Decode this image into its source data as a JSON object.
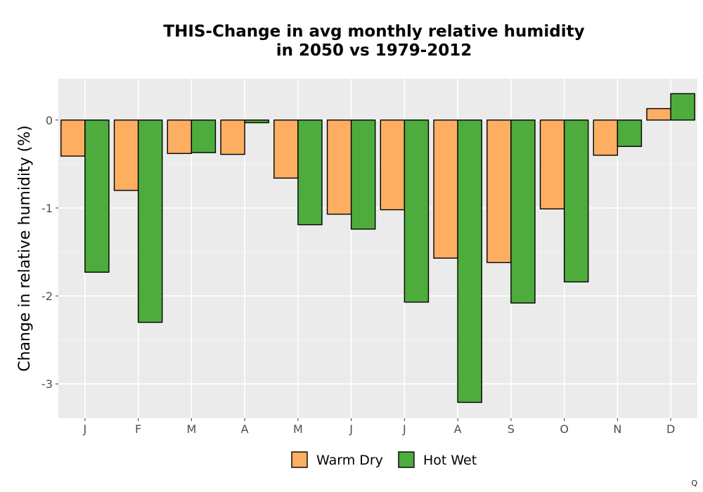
{
  "chart_data": {
    "type": "bar",
    "title_lines": [
      "THIS-Change in avg monthly relative humidity",
      "in 2050 vs 1979-2012"
    ],
    "xlabel": "",
    "ylabel": "Change in relative humidity (%)",
    "categories": [
      "J",
      "F",
      "M",
      "A",
      "M",
      "J",
      "J",
      "A",
      "S",
      "O",
      "N",
      "D"
    ],
    "series": [
      {
        "name": "Warm Dry",
        "color": "#FDAE61",
        "values": [
          -0.41,
          -0.8,
          -0.38,
          -0.39,
          -0.66,
          -1.07,
          -1.02,
          -1.57,
          -1.62,
          -1.01,
          -0.4,
          0.13
        ]
      },
      {
        "name": "Hot Wet",
        "color": "#4DAC3C",
        "values": [
          -1.73,
          -2.3,
          -0.37,
          -0.03,
          -1.19,
          -1.24,
          -2.07,
          -3.21,
          -2.08,
          -1.84,
          -0.3,
          0.3
        ]
      }
    ],
    "yticks": [
      0,
      -1,
      -2,
      -3
    ],
    "ytick_labels": [
      "0",
      "-1",
      "-2",
      "-3"
    ],
    "ylim": [
      -3.39,
      0.47
    ],
    "grid": true,
    "legend_position": "bottom"
  },
  "corner_mark": "Q"
}
